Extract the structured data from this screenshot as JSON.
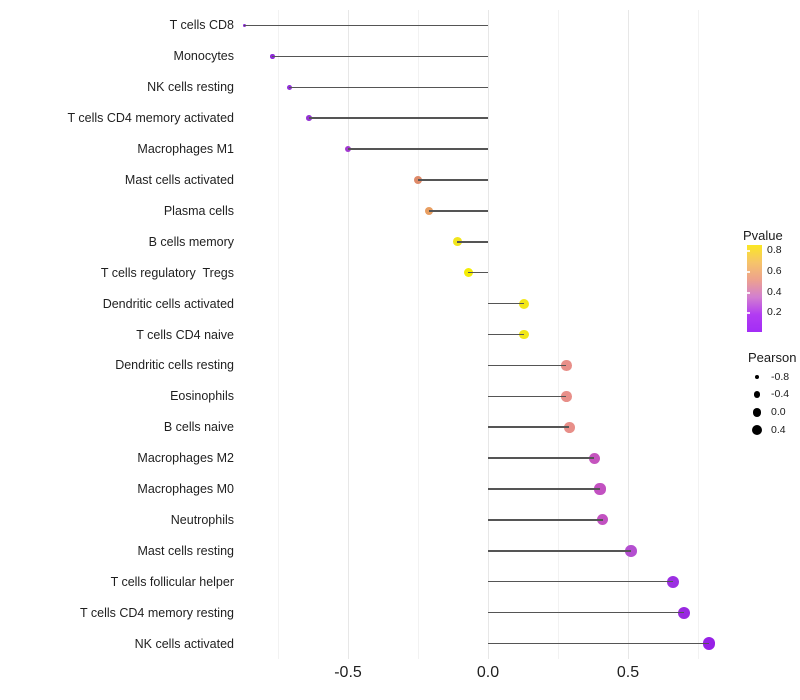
{
  "chart_data": {
    "type": "lollipop",
    "orientation": "horizontal",
    "title": "",
    "xlabel": "",
    "ylabel": "",
    "x_ticks": [
      {
        "label": "-0.5",
        "value": -0.5
      },
      {
        "label": "0.0",
        "value": 0.0
      },
      {
        "label": "0.5",
        "value": 0.5
      }
    ],
    "grid_major": [
      -0.5,
      0.0,
      0.5
    ],
    "grid_minor": [
      -0.75,
      -0.25,
      0.25,
      0.75
    ],
    "xlim": [
      -0.95,
      0.88
    ],
    "grid": "vertical-only",
    "legend_position": "right",
    "points": [
      {
        "label": "T cells CD8",
        "pearson": -0.87,
        "color": "#8a25d9"
      },
      {
        "label": "Monocytes",
        "pearson": -0.77,
        "color": "#8d2ad8"
      },
      {
        "label": "NK cells resting",
        "pearson": -0.71,
        "color": "#9030d8"
      },
      {
        "label": "T cells CD4 memory activated",
        "pearson": -0.64,
        "color": "#9534d4"
      },
      {
        "label": "Macrophages M1",
        "pearson": -0.5,
        "color": "#a238d0"
      },
      {
        "label": "Mast cells activated",
        "pearson": -0.25,
        "color": "#de8a69"
      },
      {
        "label": "Plasma cells",
        "pearson": -0.21,
        "color": "#e89e61"
      },
      {
        "label": "B cells memory",
        "pearson": -0.11,
        "color": "#f1e51d"
      },
      {
        "label": "T cells regulatory  Tregs",
        "pearson": -0.07,
        "color": "#f4ed05"
      },
      {
        "label": "Dendritic cells activated",
        "pearson": 0.13,
        "color": "#f2e717"
      },
      {
        "label": "T cells CD4 naive",
        "pearson": 0.13,
        "color": "#f2e717"
      },
      {
        "label": "Dendritic cells resting",
        "pearson": 0.28,
        "color": "#e88f89"
      },
      {
        "label": "Eosinophils",
        "pearson": 0.28,
        "color": "#e88f89"
      },
      {
        "label": "B cells naive",
        "pearson": 0.29,
        "color": "#e88f89"
      },
      {
        "label": "Macrophages M2",
        "pearson": 0.38,
        "color": "#c554be"
      },
      {
        "label": "Macrophages M0",
        "pearson": 0.4,
        "color": "#c251c1"
      },
      {
        "label": "Neutrophils",
        "pearson": 0.41,
        "color": "#c251c1"
      },
      {
        "label": "Mast cells resting",
        "pearson": 0.51,
        "color": "#b44fd0"
      },
      {
        "label": "T cells follicular helper",
        "pearson": 0.66,
        "color": "#9c2fe2"
      },
      {
        "label": "T cells CD4 memory resting",
        "pearson": 0.7,
        "color": "#9929e0"
      },
      {
        "label": "NK cells activated",
        "pearson": 0.79,
        "color": "#9721e6"
      }
    ]
  },
  "legends": {
    "pvalue": {
      "title": "Pvalue",
      "ticks": [
        "0.8",
        "0.6",
        "0.4",
        "0.2"
      ],
      "gradient": [
        "#fbe723",
        "#f6c46a",
        "#eda28e",
        "#d27fd0",
        "#b23cf2",
        "#a32df6"
      ]
    },
    "pearson": {
      "title": "Pearson",
      "dot_color": "#000000",
      "entries": [
        {
          "label": "-0.8",
          "diameter": 4.5
        },
        {
          "label": "-0.4",
          "diameter": 6.8
        },
        {
          "label": "0.0",
          "diameter": 8.7
        },
        {
          "label": "0.4",
          "diameter": 10.2
        }
      ]
    }
  },
  "style": {
    "background": "#ffffff",
    "stem_color": "#555555",
    "grid_major_color": "#e7e7e7",
    "grid_minor_color": "#f2f2f2",
    "axis_text_color": "#1f1f1f"
  }
}
